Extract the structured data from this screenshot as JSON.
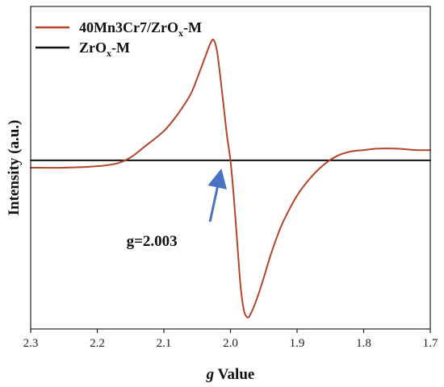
{
  "chart_data": {
    "type": "line",
    "xlabel": {
      "italic": "g",
      "rest": " Value"
    },
    "ylabel": "Intensity (a.u.)",
    "x_reversed": true,
    "xlim": [
      2.3,
      1.7
    ],
    "ylim": [
      -1.15,
      1.05
    ],
    "y_ticks_shown": false,
    "x_ticks": [
      2.3,
      2.2,
      2.1,
      2.0,
      1.9,
      1.8,
      1.7
    ],
    "x_tick_labels": [
      "2.3",
      "2.2",
      "2.1",
      "2.0",
      "1.9",
      "1.8",
      "1.7"
    ],
    "legend_placement": "top-left",
    "series": [
      {
        "name": "40Mn3Cr7/ZrOx-M",
        "legend": {
          "base": "40Mn3Cr7/ZrO",
          "sub": "x",
          "suffix": "-M"
        },
        "color": "#b5442a",
        "x": [
          2.3,
          2.25,
          2.2,
          2.17,
          2.15,
          2.13,
          2.1,
          2.08,
          2.06,
          2.05,
          2.04,
          2.03,
          2.025,
          2.02,
          2.015,
          2.01,
          2.005,
          2.0,
          1.995,
          1.99,
          1.985,
          1.98,
          1.975,
          1.97,
          1.96,
          1.95,
          1.94,
          1.93,
          1.92,
          1.9,
          1.88,
          1.86,
          1.84,
          1.82,
          1.8,
          1.78,
          1.75,
          1.72,
          1.7
        ],
        "y": [
          -0.05,
          -0.05,
          -0.04,
          -0.02,
          0.02,
          0.09,
          0.2,
          0.31,
          0.45,
          0.56,
          0.68,
          0.8,
          0.82,
          0.74,
          0.56,
          0.36,
          0.16,
          0.0,
          -0.25,
          -0.55,
          -0.85,
          -1.02,
          -1.07,
          -1.05,
          -0.94,
          -0.8,
          -0.65,
          -0.52,
          -0.41,
          -0.24,
          -0.12,
          -0.03,
          0.03,
          0.06,
          0.07,
          0.08,
          0.08,
          0.07,
          0.07
        ]
      },
      {
        "name": "ZrOx-M",
        "legend": {
          "base": "ZrO",
          "sub": "x",
          "suffix": "-M"
        },
        "color": "#111111",
        "x": [
          2.3,
          2.2,
          2.1,
          2.0,
          1.9,
          1.8,
          1.7
        ],
        "y": [
          0.0,
          0.0,
          0.0,
          0.0,
          0.0,
          0.0,
          0.0
        ]
      }
    ],
    "annotations": [
      {
        "text": "g=2.003",
        "x": 2.003,
        "y": 0.0,
        "text_x": 2.118,
        "text_y": -0.55,
        "arrow_color": "#4a72c4"
      }
    ]
  }
}
